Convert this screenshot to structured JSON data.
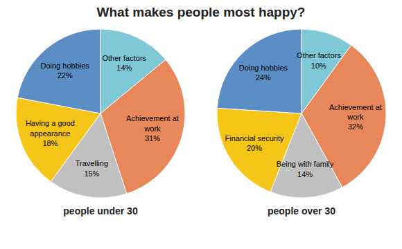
{
  "title": "What makes people most happy?",
  "chart_data": [
    {
      "type": "pie",
      "title": "people under 30",
      "categories": [
        "Other factors",
        "Achievement at\nwork",
        "Travelling",
        "Having a good\nappearance",
        "Doing hobbies"
      ],
      "values": [
        14,
        31,
        15,
        18,
        22
      ],
      "value_labels": [
        "14%",
        "31%",
        "15%",
        "18%",
        "22%"
      ],
      "colors": [
        "#7ec8d8",
        "#e8875a",
        "#c0c0c0",
        "#f5c518",
        "#5b8ec4"
      ],
      "data_labels": true
    },
    {
      "type": "pie",
      "title": "people over 30",
      "categories": [
        "Other factors",
        "Achievement at\nwork",
        "Being with family",
        "Financial security",
        "Doing hobbies"
      ],
      "values": [
        10,
        32,
        14,
        20,
        24
      ],
      "value_labels": [
        "10%",
        "32%",
        "14%",
        "20%",
        "24%"
      ],
      "colors": [
        "#7ec8d8",
        "#e8875a",
        "#c0c0c0",
        "#f5c518",
        "#5b8ec4"
      ],
      "data_labels": true
    }
  ]
}
